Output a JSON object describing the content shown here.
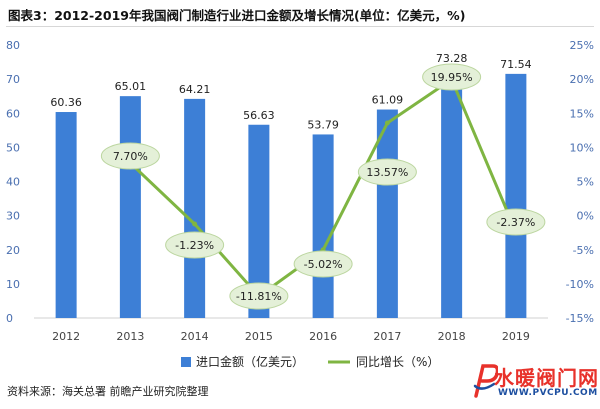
{
  "title": "图表3：2012-2019年我国阀门制造行业进口金额及增长情况(单位：亿美元，%)",
  "source": "资料来源：海关总署 前瞻产业研究院整理",
  "watermark": {
    "brand": "水暖阀门网",
    "url": "WWW.PVCPU.COM"
  },
  "colors": {
    "bar": "#3d7fd6",
    "line": "#7fb542",
    "label_bg": "#e4f0d8"
  },
  "chart_data": {
    "type": "bar",
    "categories": [
      "2012",
      "2013",
      "2014",
      "2015",
      "2016",
      "2017",
      "2018",
      "2019"
    ],
    "series": [
      {
        "name": "进口金额（亿美元）",
        "type": "bar",
        "axis": "left",
        "values": [
          60.36,
          65.01,
          64.21,
          56.63,
          53.79,
          61.09,
          73.28,
          71.54
        ],
        "labels": [
          "60.36",
          "65.01",
          "64.21",
          "56.63",
          "53.79",
          "61.09",
          "73.28",
          "71.54"
        ]
      },
      {
        "name": "同比增长（%）",
        "type": "line",
        "axis": "right",
        "values": [
          null,
          7.7,
          -1.23,
          -11.81,
          -5.02,
          13.57,
          19.95,
          -2.37
        ],
        "labels": [
          "",
          "7.70%",
          "-1.23%",
          "-11.81%",
          "-5.02%",
          "13.57%",
          "19.95%",
          "-2.37%"
        ]
      }
    ],
    "y_left": {
      "min": 0,
      "max": 80,
      "ticks": [
        "0",
        "10",
        "20",
        "30",
        "40",
        "50",
        "60",
        "70",
        "80"
      ]
    },
    "y_right": {
      "min": -15,
      "max": 25,
      "ticks": [
        "-15%",
        "-10%",
        "-5%",
        "0%",
        "5%",
        "10%",
        "15%",
        "20%",
        "25%"
      ]
    },
    "legend_position": "bottom",
    "grid": false
  }
}
